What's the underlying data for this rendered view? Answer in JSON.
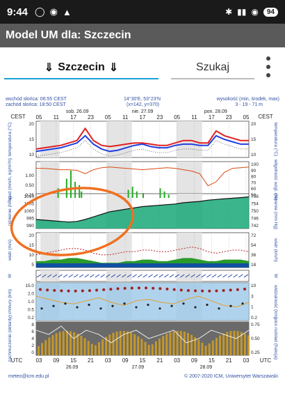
{
  "status_bar": {
    "time": "9:44",
    "battery": "94"
  },
  "app_bar": {
    "title": "Model UM dla: Szczecin"
  },
  "toolbar": {
    "city": "Szczecin",
    "search_label": "Szukaj"
  },
  "meteogram": {
    "sunrise": "wschód słońca: 06:55 CEST",
    "sunset": "zachód słońca: 18:50 CEST",
    "coords": "14°30'E, 53°23'N",
    "grid": "(x=142, y=370)",
    "height_title": "wysokość (min, środek, max)",
    "height_values": "3 - 19 - 71 m",
    "tz_left": "CEST",
    "tz_right": "CEST",
    "tz_bottom": "UTC",
    "day_top": [
      "sob. 26.09",
      "nie. 27.09",
      "pon. 28.09"
    ],
    "day_bottom": [
      "26.09",
      "27.09",
      "28.09"
    ],
    "hours_top": [
      "05",
      "11",
      "17",
      "23",
      "05",
      "11",
      "17",
      "23",
      "05",
      "11",
      "17",
      "23",
      "05"
    ],
    "hours_bottom": [
      "03",
      "09",
      "15",
      "21",
      "03",
      "09",
      "15",
      "21",
      "03",
      "09",
      "15",
      "21",
      "03"
    ],
    "labels_left": [
      "temperatura (°C)",
      "opad (mm/h, kg/m²/h)",
      "ciśnienie (hPa)",
      "wiatr (m/s)",
      "W",
      "chmury (km)",
      "zachmurzenie (oktanty)"
    ],
    "labels_right": [
      "temperatura (°C)",
      "wilgotność wzgl. (%)",
      "ciśnienie (mm Hg)",
      "wiatr (km/h)",
      "W",
      "widzialność (km)",
      "pion rozkład (frakcja)"
    ],
    "temp_ticks": [
      "20",
      "15",
      "10"
    ],
    "rain_ticks": [
      "1.00",
      "0.50",
      "0.25"
    ],
    "hum_ticks": [
      "100",
      "90",
      "80",
      "70",
      "60",
      "50"
    ],
    "press_ticks": [
      "1010",
      "1005",
      "1000",
      "995",
      "990"
    ],
    "press_mm_ticks": [
      "758",
      "754",
      "750",
      "746",
      "742"
    ],
    "wind_ticks": [
      "20",
      "15",
      "10",
      "5"
    ],
    "wind_kmh_ticks": [
      "72",
      "54",
      "36",
      "18"
    ],
    "cloud_ticks": [
      "15.0",
      "2.0",
      "1.0",
      "0.5",
      "0.2"
    ],
    "vis_ticks": [
      "10",
      "3",
      "1",
      "0.2"
    ],
    "octa_ticks": [
      "8",
      "6",
      "4",
      "2",
      "0"
    ],
    "frac_ticks": [
      "0.75",
      "0.50",
      "0.25"
    ],
    "footer_left": "meteo@icm.edu.pl",
    "footer_right": "© 2007-2020 ICM, Uniwersytet Warszawski",
    "colors": {
      "temp_max": "#e02020",
      "temp_mean": "#2040e0",
      "rain": "#22aa22",
      "humidity": "#d84a10",
      "pressure_fill": "#18a878",
      "wind_fill": "#2a9a2a",
      "annotation": "#f07020"
    }
  }
}
